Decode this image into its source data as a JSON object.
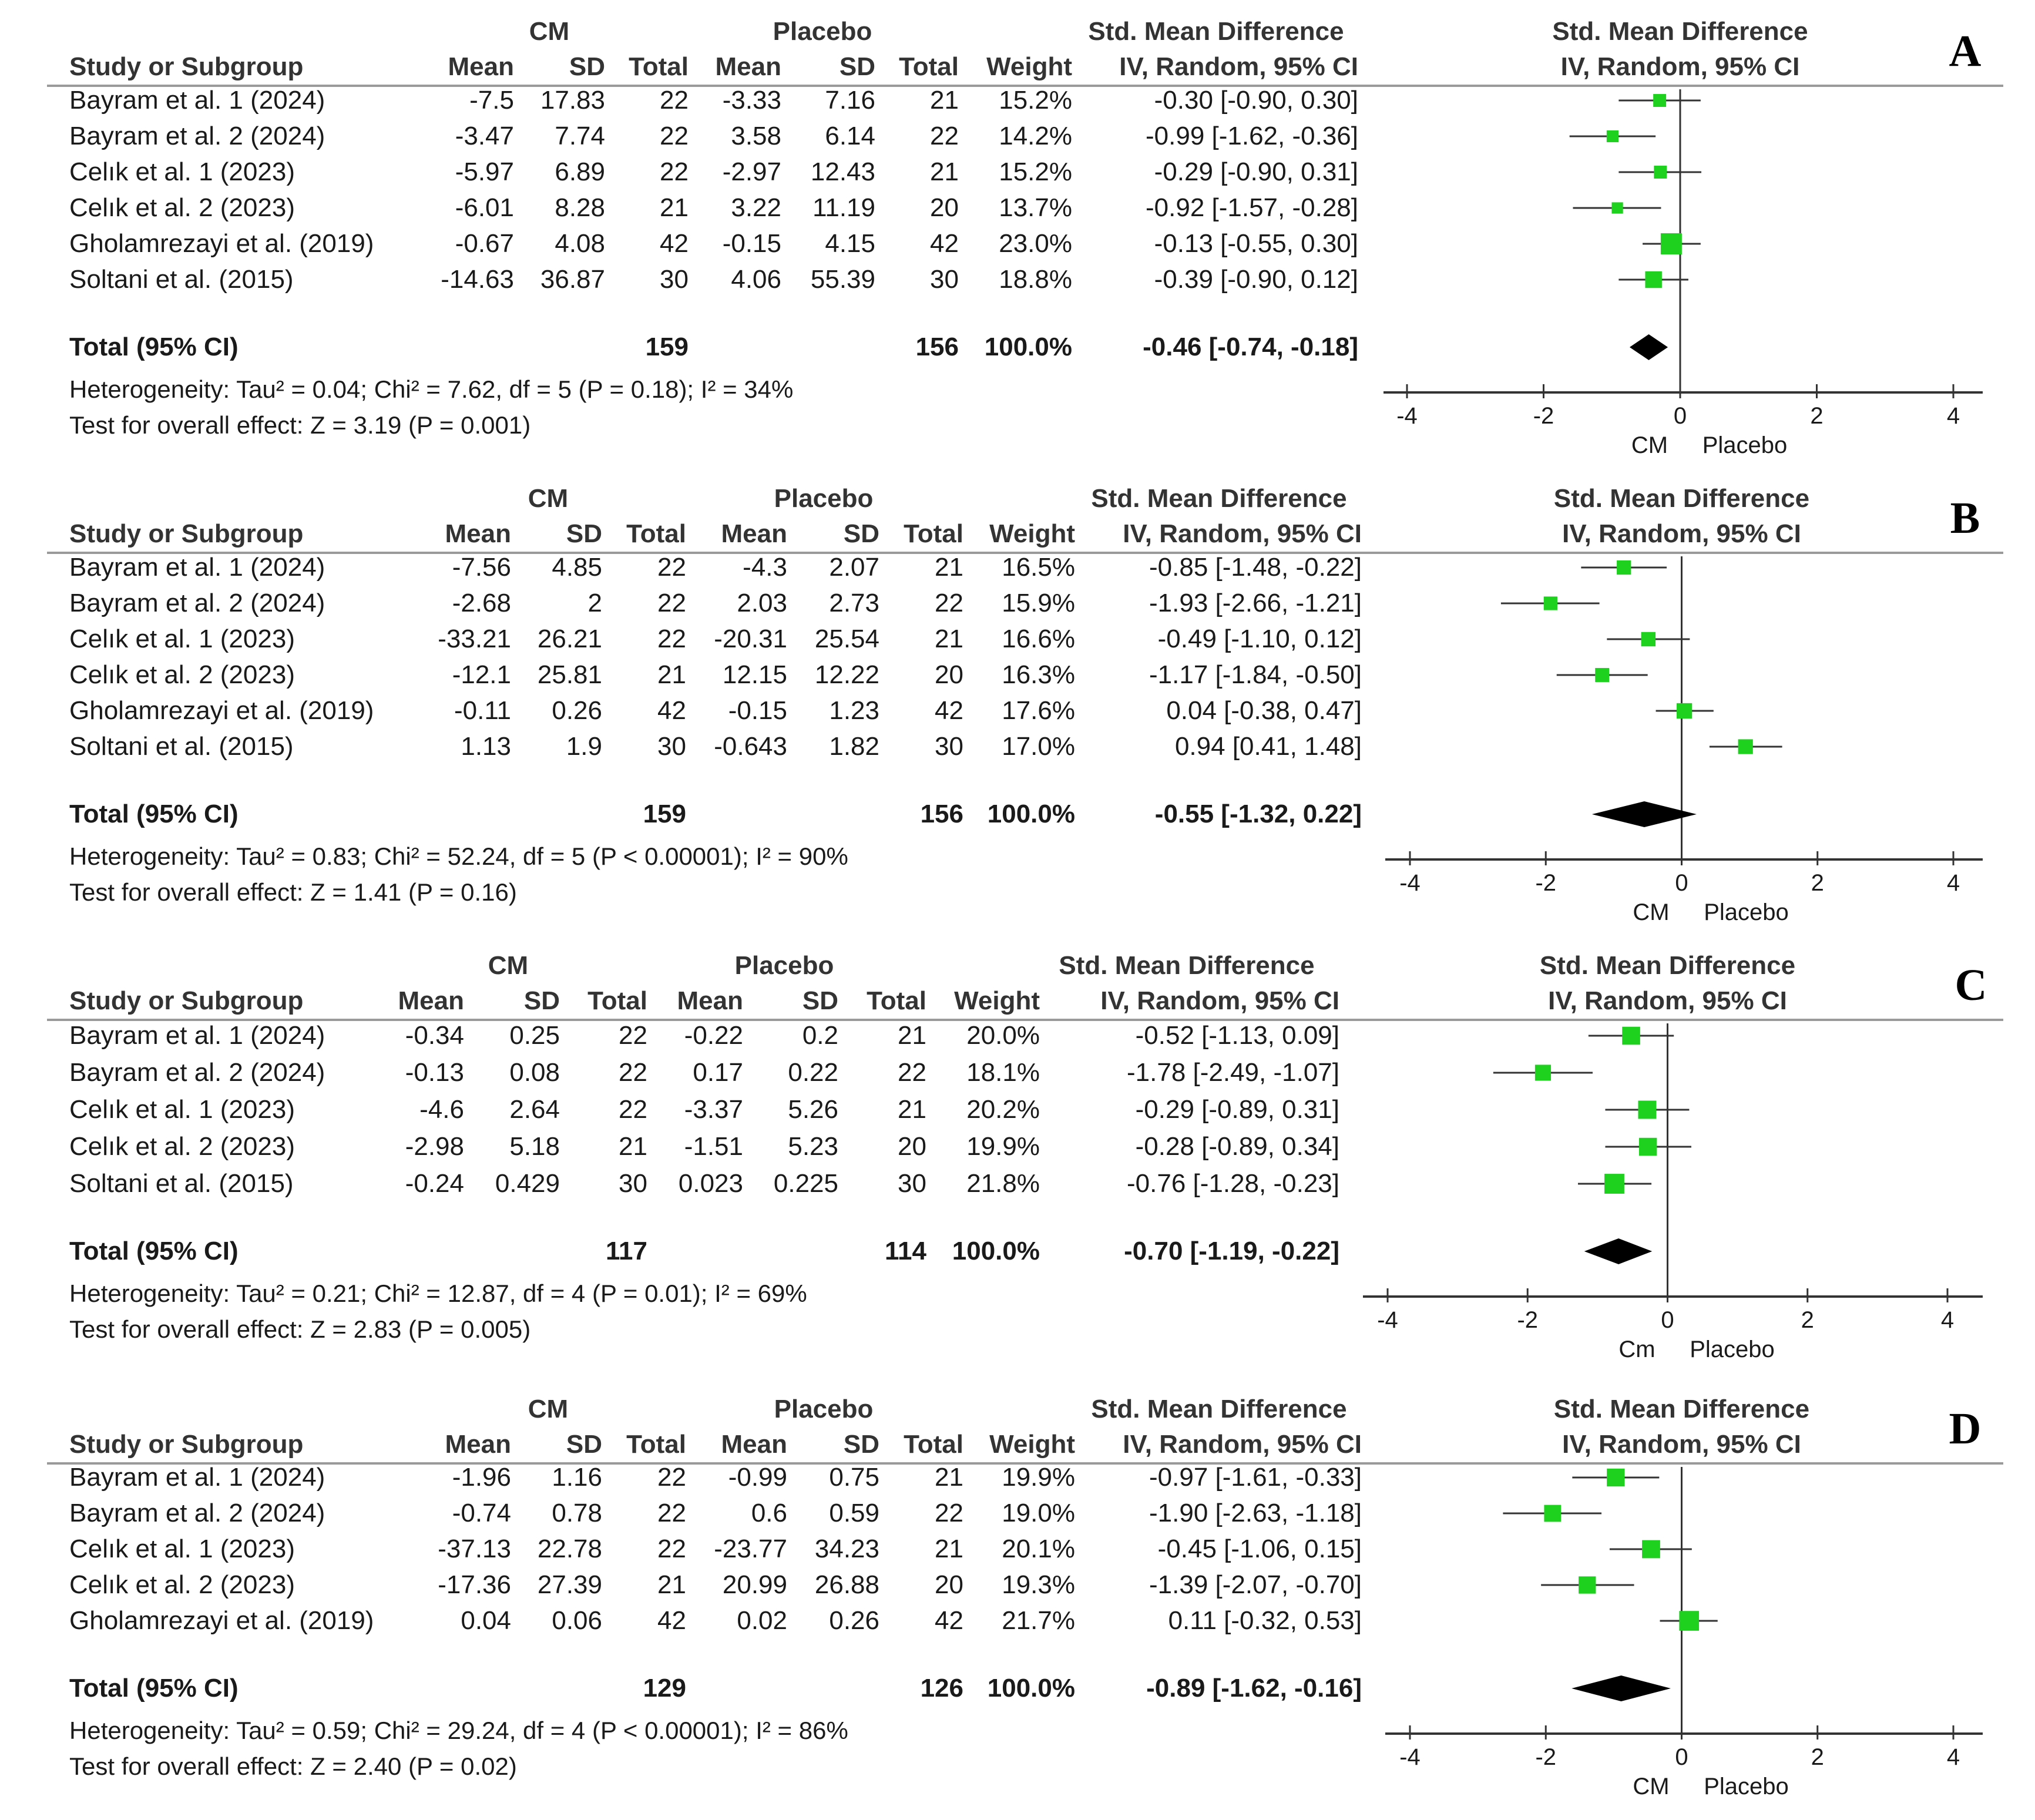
{
  "chart_data": [
    {
      "type": "forest",
      "panel_label": "A",
      "group1": "CM",
      "group2": "Placebo",
      "effect_header": "Std. Mean Difference",
      "method_header": "IV, Random, 95% CI",
      "columns": [
        "Study or Subgroup",
        "Mean",
        "SD",
        "Total",
        "Mean",
        "SD",
        "Total",
        "Weight",
        "IV, Random, 95% CI"
      ],
      "studies": [
        {
          "name": "Bayram et al. 1 (2024)",
          "cm_mean": "-7.5",
          "cm_sd": "17.83",
          "cm_total": "22",
          "pl_mean": "-3.33",
          "pl_sd": "7.16",
          "pl_total": "21",
          "weight": "15.2%",
          "ci_text": "-0.30 [-0.90, 0.30]",
          "est": -0.3,
          "lo": -0.9,
          "hi": 0.3
        },
        {
          "name": "Bayram et al. 2 (2024)",
          "cm_mean": "-3.47",
          "cm_sd": "7.74",
          "cm_total": "22",
          "pl_mean": "3.58",
          "pl_sd": "6.14",
          "pl_total": "22",
          "weight": "14.2%",
          "ci_text": "-0.99 [-1.62, -0.36]",
          "est": -0.99,
          "lo": -1.62,
          "hi": -0.36
        },
        {
          "name": "Celık et al. 1 (2023)",
          "cm_mean": "-5.97",
          "cm_sd": "6.89",
          "cm_total": "22",
          "pl_mean": "-2.97",
          "pl_sd": "12.43",
          "pl_total": "21",
          "weight": "15.2%",
          "ci_text": "-0.29 [-0.90, 0.31]",
          "est": -0.29,
          "lo": -0.9,
          "hi": 0.31
        },
        {
          "name": "Celık et al. 2 (2023)",
          "cm_mean": "-6.01",
          "cm_sd": "8.28",
          "cm_total": "21",
          "pl_mean": "3.22",
          "pl_sd": "11.19",
          "pl_total": "20",
          "weight": "13.7%",
          "ci_text": "-0.92 [-1.57, -0.28]",
          "est": -0.92,
          "lo": -1.57,
          "hi": -0.28
        },
        {
          "name": "Gholamrezayi et al. (2019)",
          "cm_mean": "-0.67",
          "cm_sd": "4.08",
          "cm_total": "42",
          "pl_mean": "-0.15",
          "pl_sd": "4.15",
          "pl_total": "42",
          "weight": "23.0%",
          "ci_text": "-0.13 [-0.55, 0.30]",
          "est": -0.13,
          "lo": -0.55,
          "hi": 0.3
        },
        {
          "name": "Soltani et al. (2015)",
          "cm_mean": "-14.63",
          "cm_sd": "36.87",
          "cm_total": "30",
          "pl_mean": "4.06",
          "pl_sd": "55.39",
          "pl_total": "30",
          "weight": "18.8%",
          "ci_text": "-0.39 [-0.90, 0.12]",
          "est": -0.39,
          "lo": -0.9,
          "hi": 0.12
        }
      ],
      "total": {
        "label": "Total (95% CI)",
        "cm_total": "159",
        "pl_total": "156",
        "weight": "100.0%",
        "ci_text": "-0.46 [-0.74, -0.18]",
        "est": -0.46,
        "lo": -0.74,
        "hi": -0.18
      },
      "heterogeneity": "Heterogeneity: Tau² = 0.04; Chi² = 7.62, df = 5 (P = 0.18); I² = 34%",
      "overall": "Test for overall effect: Z = 3.19 (P = 0.001)",
      "axis": {
        "ticks": [
          "-4",
          "-2",
          "0",
          "2",
          "4"
        ],
        "range": [
          -4,
          4
        ]
      },
      "favours_left": "CM",
      "favours_right": "Placebo"
    },
    {
      "type": "forest",
      "panel_label": "B",
      "group1": "CM",
      "group2": "Placebo",
      "effect_header": "Std. Mean Difference",
      "method_header": "IV, Random, 95% CI",
      "columns": [
        "Study or Subgroup",
        "Mean",
        "SD",
        "Total",
        "Mean",
        "SD",
        "Total",
        "Weight",
        "IV, Random, 95% CI"
      ],
      "studies": [
        {
          "name": "Bayram et al. 1 (2024)",
          "cm_mean": "-7.56",
          "cm_sd": "4.85",
          "cm_total": "22",
          "pl_mean": "-4.3",
          "pl_sd": "2.07",
          "pl_total": "21",
          "weight": "16.5%",
          "ci_text": "-0.85 [-1.48, -0.22]",
          "est": -0.85,
          "lo": -1.48,
          "hi": -0.22
        },
        {
          "name": "Bayram et al. 2 (2024)",
          "cm_mean": "-2.68",
          "cm_sd": "2",
          "cm_total": "22",
          "pl_mean": "2.03",
          "pl_sd": "2.73",
          "pl_total": "22",
          "weight": "15.9%",
          "ci_text": "-1.93 [-2.66, -1.21]",
          "est": -1.93,
          "lo": -2.66,
          "hi": -1.21
        },
        {
          "name": "Celık et al. 1 (2023)",
          "cm_mean": "-33.21",
          "cm_sd": "26.21",
          "cm_total": "22",
          "pl_mean": "-20.31",
          "pl_sd": "25.54",
          "pl_total": "21",
          "weight": "16.6%",
          "ci_text": "-0.49 [-1.10, 0.12]",
          "est": -0.49,
          "lo": -1.1,
          "hi": 0.12
        },
        {
          "name": "Celık et al. 2 (2023)",
          "cm_mean": "-12.1",
          "cm_sd": "25.81",
          "cm_total": "21",
          "pl_mean": "12.15",
          "pl_sd": "12.22",
          "pl_total": "20",
          "weight": "16.3%",
          "ci_text": "-1.17 [-1.84, -0.50]",
          "est": -1.17,
          "lo": -1.84,
          "hi": -0.5
        },
        {
          "name": "Gholamrezayi et al. (2019)",
          "cm_mean": "-0.11",
          "cm_sd": "0.26",
          "cm_total": "42",
          "pl_mean": "-0.15",
          "pl_sd": "1.23",
          "pl_total": "42",
          "weight": "17.6%",
          "ci_text": "0.04 [-0.38, 0.47]",
          "est": 0.04,
          "lo": -0.38,
          "hi": 0.47
        },
        {
          "name": "Soltani et al. (2015)",
          "cm_mean": "1.13",
          "cm_sd": "1.9",
          "cm_total": "30",
          "pl_mean": "-0.643",
          "pl_sd": "1.82",
          "pl_total": "30",
          "weight": "17.0%",
          "ci_text": "0.94 [0.41, 1.48]",
          "est": 0.94,
          "lo": 0.41,
          "hi": 1.48
        }
      ],
      "total": {
        "label": "Total (95% CI)",
        "cm_total": "159",
        "pl_total": "156",
        "weight": "100.0%",
        "ci_text": "-0.55 [-1.32, 0.22]",
        "est": -0.55,
        "lo": -1.32,
        "hi": 0.22
      },
      "heterogeneity": "Heterogeneity: Tau² = 0.83; Chi² = 52.24, df = 5 (P < 0.00001); I² = 90%",
      "overall": "Test for overall effect: Z = 1.41 (P = 0.16)",
      "axis": {
        "ticks": [
          "-4",
          "-2",
          "0",
          "2",
          "4"
        ],
        "range": [
          -4,
          4
        ]
      },
      "favours_left": "CM",
      "favours_right": "Placebo"
    },
    {
      "type": "forest",
      "panel_label": "C",
      "group1": "CM",
      "group2": "Placebo",
      "effect_header": "Std. Mean Difference",
      "method_header": "IV, Random, 95% CI",
      "columns": [
        "Study or Subgroup",
        "Mean",
        "SD",
        "Total",
        "Mean",
        "SD",
        "Total",
        "Weight",
        "IV, Random, 95% CI"
      ],
      "studies": [
        {
          "name": "Bayram et al. 1 (2024)",
          "cm_mean": "-0.34",
          "cm_sd": "0.25",
          "cm_total": "22",
          "pl_mean": "-0.22",
          "pl_sd": "0.2",
          "pl_total": "21",
          "weight": "20.0%",
          "ci_text": "-0.52 [-1.13, 0.09]",
          "est": -0.52,
          "lo": -1.13,
          "hi": 0.09
        },
        {
          "name": "Bayram et al. 2 (2024)",
          "cm_mean": "-0.13",
          "cm_sd": "0.08",
          "cm_total": "22",
          "pl_mean": "0.17",
          "pl_sd": "0.22",
          "pl_total": "22",
          "weight": "18.1%",
          "ci_text": "-1.78 [-2.49, -1.07]",
          "est": -1.78,
          "lo": -2.49,
          "hi": -1.07
        },
        {
          "name": "Celık et al. 1 (2023)",
          "cm_mean": "-4.6",
          "cm_sd": "2.64",
          "cm_total": "22",
          "pl_mean": "-3.37",
          "pl_sd": "5.26",
          "pl_total": "21",
          "weight": "20.2%",
          "ci_text": "-0.29 [-0.89, 0.31]",
          "est": -0.29,
          "lo": -0.89,
          "hi": 0.31
        },
        {
          "name": "Celık et al. 2 (2023)",
          "cm_mean": "-2.98",
          "cm_sd": "5.18",
          "cm_total": "21",
          "pl_mean": "-1.51",
          "pl_sd": "5.23",
          "pl_total": "20",
          "weight": "19.9%",
          "ci_text": "-0.28 [-0.89, 0.34]",
          "est": -0.28,
          "lo": -0.89,
          "hi": 0.34
        },
        {
          "name": "Soltani et al. (2015)",
          "cm_mean": "-0.24",
          "cm_sd": "0.429",
          "cm_total": "30",
          "pl_mean": "0.023",
          "pl_sd": "0.225",
          "pl_total": "30",
          "weight": "21.8%",
          "ci_text": "-0.76 [-1.28, -0.23]",
          "est": -0.76,
          "lo": -1.28,
          "hi": -0.23
        }
      ],
      "total": {
        "label": "Total (95% CI)",
        "cm_total": "117",
        "pl_total": "114",
        "weight": "100.0%",
        "ci_text": "-0.70 [-1.19, -0.22]",
        "est": -0.7,
        "lo": -1.19,
        "hi": -0.22
      },
      "heterogeneity": "Heterogeneity: Tau² = 0.21; Chi² = 12.87, df = 4 (P = 0.01); I² = 69%",
      "overall": "Test for overall effect: Z = 2.83 (P = 0.005)",
      "axis": {
        "ticks": [
          "-4",
          "-2",
          "0",
          "2",
          "4"
        ],
        "range": [
          -4,
          4
        ]
      },
      "favours_left": "Cm",
      "favours_right": "Placebo"
    },
    {
      "type": "forest",
      "panel_label": "D",
      "group1": "CM",
      "group2": "Placebo",
      "effect_header": "Std. Mean Difference",
      "method_header": "IV, Random, 95% CI",
      "columns": [
        "Study or Subgroup",
        "Mean",
        "SD",
        "Total",
        "Mean",
        "SD",
        "Total",
        "Weight",
        "IV, Random, 95% CI"
      ],
      "studies": [
        {
          "name": "Bayram et al. 1 (2024)",
          "cm_mean": "-1.96",
          "cm_sd": "1.16",
          "cm_total": "22",
          "pl_mean": "-0.99",
          "pl_sd": "0.75",
          "pl_total": "21",
          "weight": "19.9%",
          "ci_text": "-0.97 [-1.61, -0.33]",
          "est": -0.97,
          "lo": -1.61,
          "hi": -0.33
        },
        {
          "name": "Bayram et al. 2 (2024)",
          "cm_mean": "-0.74",
          "cm_sd": "0.78",
          "cm_total": "22",
          "pl_mean": "0.6",
          "pl_sd": "0.59",
          "pl_total": "22",
          "weight": "19.0%",
          "ci_text": "-1.90 [-2.63, -1.18]",
          "est": -1.9,
          "lo": -2.63,
          "hi": -1.18
        },
        {
          "name": "Celık et al. 1 (2023)",
          "cm_mean": "-37.13",
          "cm_sd": "22.78",
          "cm_total": "22",
          "pl_mean": "-23.77",
          "pl_sd": "34.23",
          "pl_total": "21",
          "weight": "20.1%",
          "ci_text": "-0.45 [-1.06, 0.15]",
          "est": -0.45,
          "lo": -1.06,
          "hi": 0.15
        },
        {
          "name": "Celık et al. 2 (2023)",
          "cm_mean": "-17.36",
          "cm_sd": "27.39",
          "cm_total": "21",
          "pl_mean": "20.99",
          "pl_sd": "26.88",
          "pl_total": "20",
          "weight": "19.3%",
          "ci_text": "-1.39 [-2.07, -0.70]",
          "est": -1.39,
          "lo": -2.07,
          "hi": -0.7
        },
        {
          "name": "Gholamrezayi et al. (2019)",
          "cm_mean": "0.04",
          "cm_sd": "0.06",
          "cm_total": "42",
          "pl_mean": "0.02",
          "pl_sd": "0.26",
          "pl_total": "42",
          "weight": "21.7%",
          "ci_text": "0.11 [-0.32, 0.53]",
          "est": 0.11,
          "lo": -0.32,
          "hi": 0.53
        }
      ],
      "total": {
        "label": "Total (95% CI)",
        "cm_total": "129",
        "pl_total": "126",
        "weight": "100.0%",
        "ci_text": "-0.89 [-1.62, -0.16]",
        "est": -0.89,
        "lo": -1.62,
        "hi": -0.16
      },
      "heterogeneity": "Heterogeneity: Tau² = 0.59; Chi² = 29.24, df = 4 (P < 0.00001); I² = 86%",
      "overall": "Test for overall effect: Z = 2.40 (P = 0.02)",
      "axis": {
        "ticks": [
          "-4",
          "-2",
          "0",
          "2",
          "4"
        ],
        "range": [
          -4,
          4
        ]
      },
      "favours_left": "CM",
      "favours_right": "Placebo"
    }
  ],
  "colors": {
    "marker": "#1fd11f",
    "line": "#333333",
    "text": "#1a1a1a",
    "separator": "#9a9a9a"
  }
}
